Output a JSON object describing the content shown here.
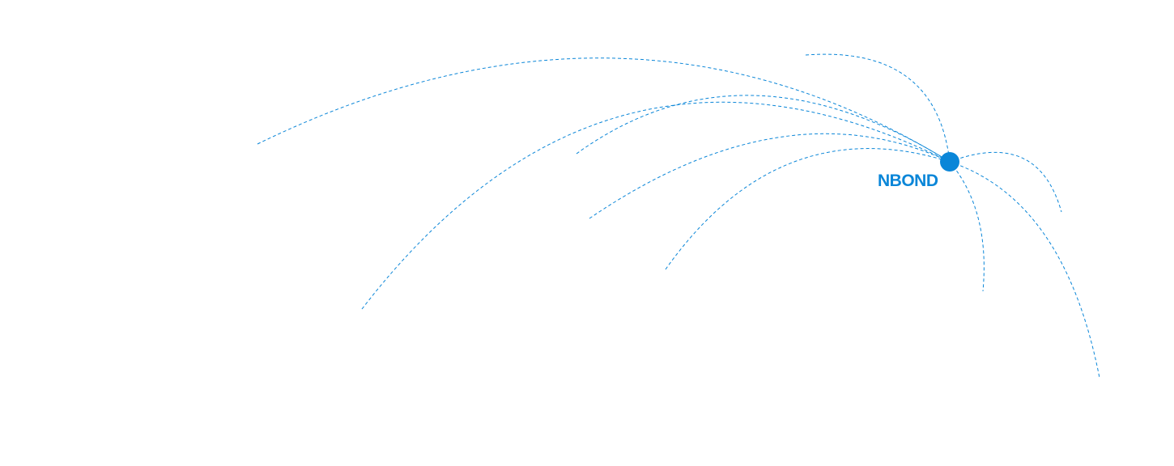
{
  "hub": {
    "label": "NBOND"
  },
  "colors": {
    "accent": "#0a86d8"
  }
}
